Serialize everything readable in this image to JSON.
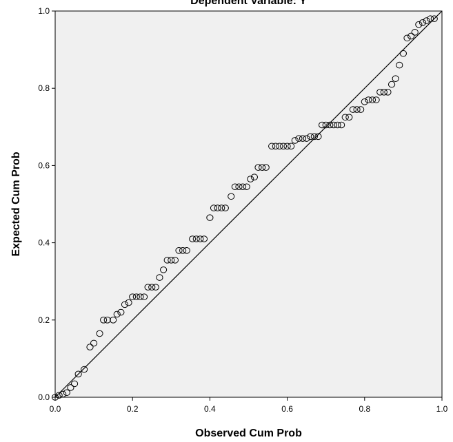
{
  "chart_data": {
    "type": "scatter",
    "title": "Dependent Variable: Y",
    "xlabel": "Observed Cum Prob",
    "ylabel": "Expected Cum Prob",
    "xlim": [
      0.0,
      1.0
    ],
    "ylim": [
      0.0,
      1.0
    ],
    "x_ticks": [
      "0.0",
      "0.2",
      "0.4",
      "0.6",
      "0.8",
      "1.0"
    ],
    "y_ticks": [
      "0.0",
      "0.2",
      "0.4",
      "0.6",
      "0.8",
      "1.0"
    ],
    "grid": false,
    "reference_line": {
      "from": [
        0.0,
        0.0
      ],
      "to": [
        1.0,
        1.0
      ]
    },
    "colors": {
      "plot_background": "#f0f0f0",
      "marker_stroke": "#000000",
      "line": "#000000"
    },
    "points": [
      [
        0.0,
        0.0
      ],
      [
        0.01,
        0.005
      ],
      [
        0.02,
        0.008
      ],
      [
        0.03,
        0.012
      ],
      [
        0.04,
        0.025
      ],
      [
        0.05,
        0.035
      ],
      [
        0.06,
        0.06
      ],
      [
        0.075,
        0.072
      ],
      [
        0.09,
        0.13
      ],
      [
        0.1,
        0.14
      ],
      [
        0.115,
        0.165
      ],
      [
        0.125,
        0.2
      ],
      [
        0.135,
        0.2
      ],
      [
        0.15,
        0.2
      ],
      [
        0.16,
        0.215
      ],
      [
        0.17,
        0.22
      ],
      [
        0.18,
        0.24
      ],
      [
        0.19,
        0.245
      ],
      [
        0.2,
        0.26
      ],
      [
        0.21,
        0.26
      ],
      [
        0.22,
        0.26
      ],
      [
        0.23,
        0.26
      ],
      [
        0.24,
        0.285
      ],
      [
        0.25,
        0.285
      ],
      [
        0.26,
        0.285
      ],
      [
        0.27,
        0.31
      ],
      [
        0.28,
        0.33
      ],
      [
        0.29,
        0.355
      ],
      [
        0.3,
        0.355
      ],
      [
        0.31,
        0.355
      ],
      [
        0.32,
        0.38
      ],
      [
        0.33,
        0.38
      ],
      [
        0.34,
        0.38
      ],
      [
        0.355,
        0.41
      ],
      [
        0.365,
        0.41
      ],
      [
        0.375,
        0.41
      ],
      [
        0.385,
        0.41
      ],
      [
        0.4,
        0.465
      ],
      [
        0.41,
        0.49
      ],
      [
        0.42,
        0.49
      ],
      [
        0.43,
        0.49
      ],
      [
        0.44,
        0.49
      ],
      [
        0.455,
        0.52
      ],
      [
        0.465,
        0.545
      ],
      [
        0.475,
        0.545
      ],
      [
        0.485,
        0.545
      ],
      [
        0.495,
        0.545
      ],
      [
        0.505,
        0.565
      ],
      [
        0.515,
        0.57
      ],
      [
        0.525,
        0.595
      ],
      [
        0.535,
        0.595
      ],
      [
        0.545,
        0.595
      ],
      [
        0.56,
        0.65
      ],
      [
        0.57,
        0.65
      ],
      [
        0.58,
        0.65
      ],
      [
        0.59,
        0.65
      ],
      [
        0.6,
        0.65
      ],
      [
        0.61,
        0.65
      ],
      [
        0.62,
        0.665
      ],
      [
        0.63,
        0.67
      ],
      [
        0.64,
        0.67
      ],
      [
        0.65,
        0.67
      ],
      [
        0.66,
        0.675
      ],
      [
        0.67,
        0.675
      ],
      [
        0.68,
        0.675
      ],
      [
        0.69,
        0.705
      ],
      [
        0.7,
        0.705
      ],
      [
        0.71,
        0.705
      ],
      [
        0.72,
        0.705
      ],
      [
        0.73,
        0.705
      ],
      [
        0.74,
        0.705
      ],
      [
        0.75,
        0.725
      ],
      [
        0.76,
        0.725
      ],
      [
        0.77,
        0.745
      ],
      [
        0.78,
        0.745
      ],
      [
        0.79,
        0.745
      ],
      [
        0.8,
        0.765
      ],
      [
        0.81,
        0.77
      ],
      [
        0.82,
        0.77
      ],
      [
        0.83,
        0.77
      ],
      [
        0.84,
        0.79
      ],
      [
        0.85,
        0.79
      ],
      [
        0.86,
        0.79
      ],
      [
        0.87,
        0.81
      ],
      [
        0.88,
        0.825
      ],
      [
        0.89,
        0.86
      ],
      [
        0.9,
        0.89
      ],
      [
        0.91,
        0.93
      ],
      [
        0.92,
        0.935
      ],
      [
        0.93,
        0.945
      ],
      [
        0.94,
        0.965
      ],
      [
        0.95,
        0.97
      ],
      [
        0.96,
        0.975
      ],
      [
        0.97,
        0.98
      ],
      [
        0.98,
        0.98
      ]
    ]
  }
}
